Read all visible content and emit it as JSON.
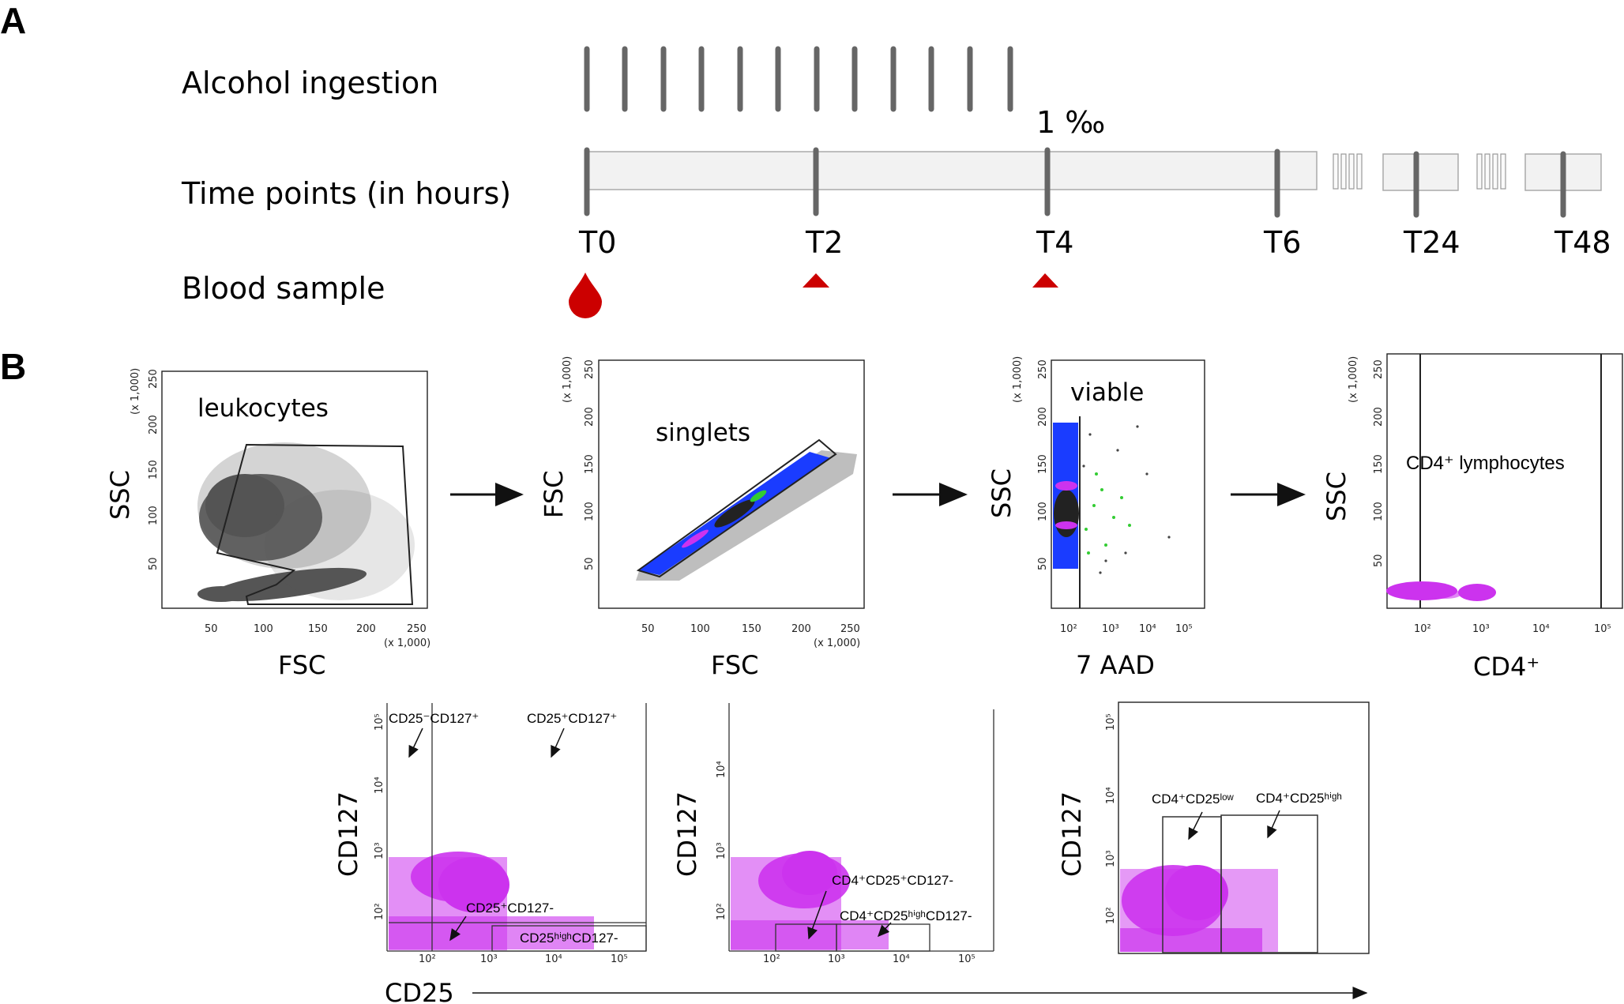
{
  "panel_a": {
    "letter": "A",
    "rows": {
      "alcohol": "Alcohol ingestion",
      "time": "Time points (in hours)",
      "blood": "Blood sample"
    },
    "bac_label": "1 ‰",
    "time_points": [
      "T0",
      "T2",
      "T4",
      "T6",
      "T24",
      "T48"
    ],
    "sample_icons": [
      "blood-drop-icon",
      "red-triangle-icon",
      "red-triangle-icon"
    ],
    "colors": {
      "sample_red": "#cc0000",
      "bar_grey": "#666666",
      "timeline_fill": "#f0f0f0"
    }
  },
  "panel_b": {
    "letter": "B",
    "plots": {
      "leukocytes": {
        "gate": "leukocytes",
        "xlabel": "FSC",
        "ylabel": "SSC",
        "scale_label": "(x 1,000)",
        "xticks": [
          "50",
          "100",
          "150",
          "200",
          "250"
        ],
        "yticks": [
          "50",
          "100",
          "150",
          "200",
          "250"
        ]
      },
      "singlets": {
        "gate": "singlets",
        "xlabel": "FSC",
        "ylabel": "FSC",
        "scale_label": "(x 1,000)",
        "xticks": [
          "50",
          "100",
          "150",
          "200",
          "250"
        ],
        "yticks": [
          "50",
          "100",
          "150",
          "200",
          "250"
        ]
      },
      "viable": {
        "gate": "viable",
        "xlabel": "7 AAD",
        "ylabel": "SSC",
        "scale_label": "(x 1,000)",
        "xticks": [
          "10²",
          "10³",
          "10⁴",
          "10⁵"
        ],
        "yticks": [
          "50",
          "100",
          "150",
          "200",
          "250"
        ]
      },
      "cd4": {
        "gate": "CD4⁺ lymphocytes",
        "xlabel": "CD4⁺",
        "ylabel": "SSC",
        "scale_label": "(x 1,000)",
        "xticks": [
          "10²",
          "10³",
          "10⁴",
          "10⁵"
        ],
        "yticks": [
          "50",
          "100",
          "150",
          "200",
          "250"
        ]
      }
    },
    "lower": {
      "ylabel": "CD127",
      "xlabel": "CD25",
      "plot1": {
        "labels": [
          "CD25⁻CD127⁺",
          "CD25⁺CD127⁺",
          "CD25⁺CD127-",
          "CD25ʰⁱᵍʰCD127-"
        ],
        "yticks": [
          "10⁵",
          "10⁴",
          "10³",
          "10²"
        ],
        "xticks": [
          "10²",
          "10³",
          "10⁴",
          "10⁵"
        ]
      },
      "plot2": {
        "labels": [
          "CD4⁺CD25⁺CD127-",
          "CD4⁺CD25ʰⁱᵍʰCD127-"
        ],
        "yticks": [
          "10⁴",
          "10³",
          "10²"
        ],
        "xticks": [
          "10²",
          "10³",
          "10⁴",
          "10⁵"
        ]
      },
      "plot3": {
        "labels": [
          "CD4⁺CD25ˡᵒʷ",
          "CD4⁺CD25ʰⁱᵍʰ"
        ],
        "yticks": [
          "10⁵",
          "10⁴",
          "10³",
          "10²"
        ]
      }
    },
    "colors": {
      "events_grey": "#555555",
      "events_blue": "#1a3cff",
      "events_magenta": "#cc33ee",
      "events_green": "#33cc33"
    }
  }
}
